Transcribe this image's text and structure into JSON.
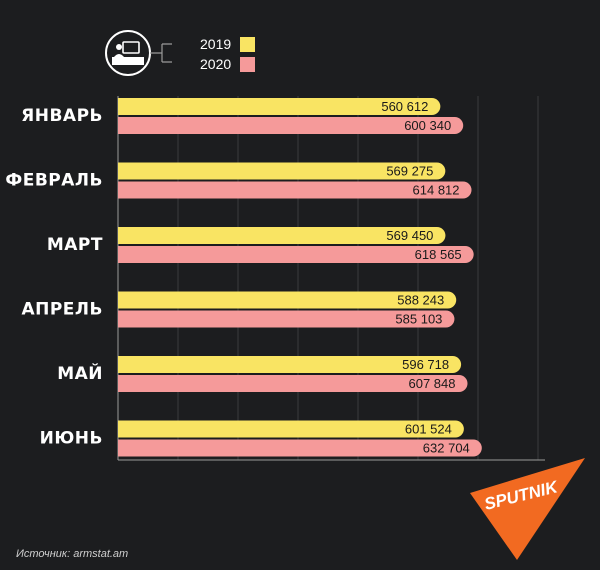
{
  "chart_data": {
    "type": "bar",
    "orientation": "horizontal",
    "categories": [
      "ЯНВАРЬ",
      "ФЕВРАЛЬ",
      "МАРТ",
      "АПРЕЛЬ",
      "МАЙ",
      "ИЮНЬ"
    ],
    "series": [
      {
        "name": "2019",
        "color": "#f9e463",
        "values": [
          560612,
          569275,
          569450,
          588243,
          596718,
          601524
        ],
        "labels": [
          "560 612",
          "569 275",
          "569 450",
          "588 243",
          "596 718",
          "601 524"
        ]
      },
      {
        "name": "2020",
        "color": "#f59a9a",
        "values": [
          600340,
          614812,
          618565,
          585103,
          607848,
          632704
        ],
        "labels": [
          "600 340",
          "614 812",
          "618 565",
          "585 103",
          "607 848",
          "632 704"
        ]
      }
    ],
    "grid": true,
    "legend_position": "top",
    "legend_icon": "workplace-computer-icon"
  },
  "source_text": "Источник: armstat.am",
  "logo_text": "SPUTNIK",
  "colors": {
    "background": "#1c1d1f",
    "grid": "#3a3b3e",
    "logo": "#f26a21"
  }
}
